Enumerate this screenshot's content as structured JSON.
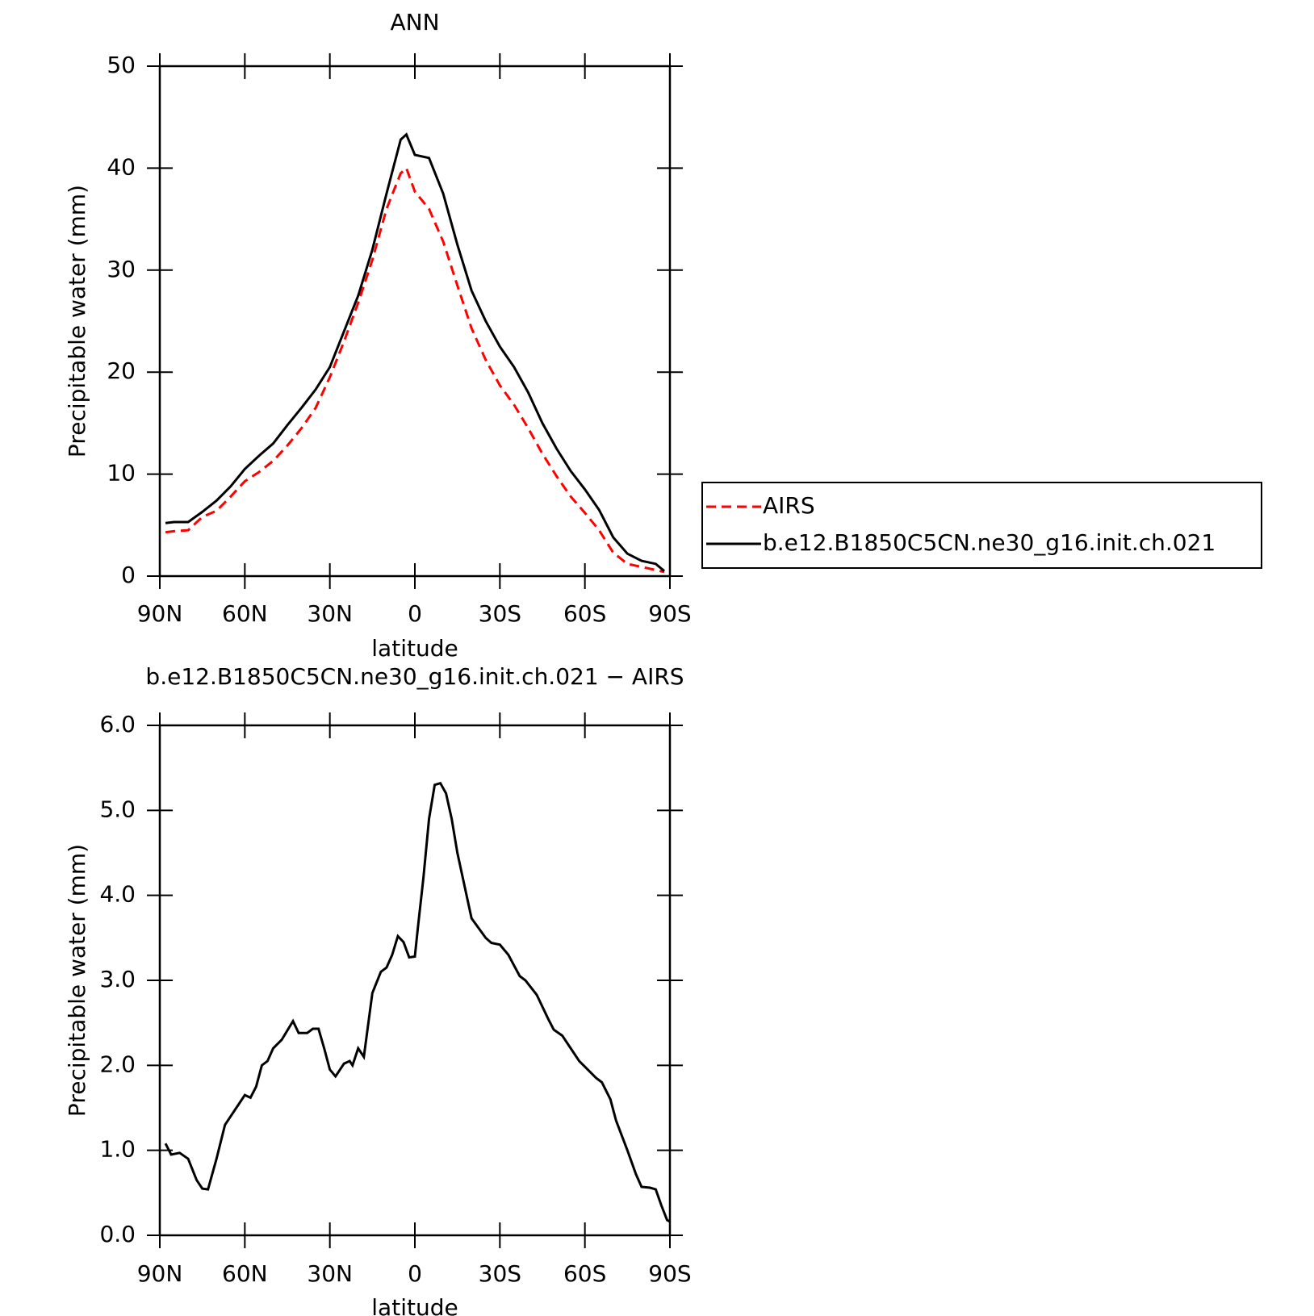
{
  "chart_data": [
    {
      "type": "line",
      "title": "ANN",
      "xlabel": "latitude",
      "ylabel": "Precipitable water (mm)",
      "xlim": [
        90,
        -90
      ],
      "xticks": [
        {
          "value": 90,
          "label": "90N"
        },
        {
          "value": 60,
          "label": "60N"
        },
        {
          "value": 30,
          "label": "30N"
        },
        0,
        {
          "value": -30,
          "label": "30S"
        },
        {
          "value": -60,
          "label": "60S"
        },
        {
          "value": -90,
          "label": "90S"
        }
      ],
      "ylim": [
        0,
        50
      ],
      "yticks": [
        0,
        10,
        20,
        30,
        40,
        50
      ],
      "x": [
        88,
        85,
        80,
        75,
        70,
        65,
        60,
        55,
        50,
        45,
        40,
        35,
        30,
        25,
        20,
        15,
        10,
        5,
        3,
        0,
        -5,
        -10,
        -15,
        -20,
        -25,
        -30,
        -35,
        -40,
        -45,
        -50,
        -55,
        -60,
        -65,
        -70,
        -75,
        -80,
        -85,
        -88
      ],
      "legend": "right",
      "series": [
        {
          "name": "AIRS",
          "color": "#ff0000",
          "dashed": true,
          "values": [
            4.3,
            4.4,
            4.5,
            5.8,
            6.4,
            7.8,
            9.3,
            10.2,
            11.3,
            12.8,
            14.5,
            16.5,
            19.5,
            23,
            26.8,
            31,
            36,
            39.5,
            40,
            37.7,
            36,
            32.8,
            28.5,
            24.3,
            21.2,
            18.7,
            16.8,
            14.5,
            12,
            9.8,
            7.8,
            6.2,
            4.5,
            2.3,
            1.2,
            0.9,
            0.6,
            0.4
          ]
        },
        {
          "name": "b.e12.B1850C5CN.ne30_g16.init.ch.021",
          "color": "#000000",
          "dashed": false,
          "values": [
            5.2,
            5.3,
            5.3,
            6.3,
            7.4,
            8.8,
            10.5,
            11.8,
            13,
            14.8,
            16.5,
            18.3,
            20.5,
            24,
            27.5,
            32,
            37.5,
            42.8,
            43.3,
            41.3,
            41,
            37.5,
            32.5,
            28,
            25,
            22.5,
            20.5,
            18,
            15,
            12.5,
            10.3,
            8.5,
            6.5,
            3.8,
            2.2,
            1.5,
            1.2,
            0.5
          ]
        }
      ]
    },
    {
      "type": "line",
      "title": "b.e12.B1850C5CN.ne30_g16.init.ch.021 − AIRS",
      "xlabel": "latitude",
      "ylabel": "Precipitable water (mm)",
      "xlim": [
        90,
        -90
      ],
      "xticks": [
        {
          "value": 90,
          "label": "90N"
        },
        {
          "value": 60,
          "label": "60N"
        },
        {
          "value": 30,
          "label": "30N"
        },
        0,
        {
          "value": -30,
          "label": "30S"
        },
        {
          "value": -60,
          "label": "60S"
        },
        {
          "value": -90,
          "label": "90S"
        }
      ],
      "ylim": [
        0,
        6
      ],
      "yticks": [
        {
          "value": 0,
          "label": "0.0"
        },
        {
          "value": 1,
          "label": "1.0"
        },
        {
          "value": 2,
          "label": "2.0"
        },
        {
          "value": 3,
          "label": "3.0"
        },
        {
          "value": 4,
          "label": "4.0"
        },
        {
          "value": 5,
          "label": "5.0"
        },
        {
          "value": 6,
          "label": "6.0"
        }
      ],
      "x": [
        88,
        86,
        83,
        80,
        77,
        75,
        73,
        70,
        67,
        63,
        60,
        58,
        56,
        54,
        52,
        50,
        47,
        43,
        41,
        38,
        36,
        34,
        32,
        30,
        28,
        25,
        23,
        22,
        20,
        18,
        15,
        12,
        10,
        8,
        6,
        4,
        2,
        0,
        -1,
        -3,
        -5,
        -7,
        -9,
        -11,
        -13,
        -15,
        -20,
        -25,
        -27,
        -30,
        -33,
        -37,
        -39,
        -43,
        -47,
        -49,
        -52,
        -55,
        -58,
        -61,
        -64,
        -66,
        -69,
        -71,
        -75,
        -78,
        -80,
        -83,
        -85,
        -87,
        -89,
        -90
      ],
      "series": [
        {
          "color": "#000000",
          "dashed": false,
          "values": [
            1.08,
            0.95,
            0.97,
            0.9,
            0.65,
            0.55,
            0.54,
            0.9,
            1.3,
            1.5,
            1.65,
            1.62,
            1.75,
            2,
            2.05,
            2.2,
            2.3,
            2.52,
            2.38,
            2.38,
            2.43,
            2.43,
            2.2,
            1.95,
            1.87,
            2.02,
            2.05,
            2,
            2.2,
            2.1,
            2.85,
            3.1,
            3.15,
            3.3,
            3.52,
            3.45,
            3.27,
            3.28,
            3.6,
            4.2,
            4.9,
            5.3,
            5.32,
            5.2,
            4.9,
            4.5,
            3.73,
            3.5,
            3.44,
            3.42,
            3.3,
            3.05,
            3,
            2.83,
            2.55,
            2.42,
            2.35,
            2.2,
            2.05,
            1.95,
            1.85,
            1.8,
            1.6,
            1.35,
            1,
            0.72,
            0.57,
            0.56,
            0.54,
            0.35,
            0.18,
            0.16
          ]
        }
      ]
    }
  ]
}
